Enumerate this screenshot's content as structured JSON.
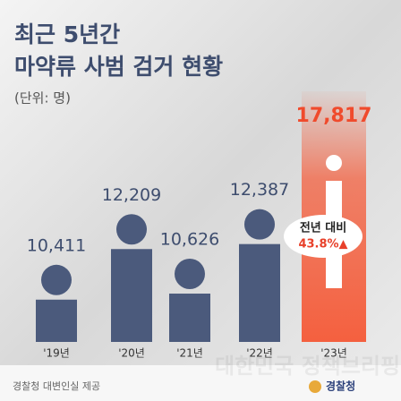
{
  "chart_data": {
    "type": "person-bar",
    "title": "최근 5년간",
    "subtitle": "마약류 사범 검거 현황",
    "unit": "(단위: 명)",
    "categories": [
      "'19년",
      "'20년",
      "'21년",
      "'22년",
      "'23년"
    ],
    "values": [
      10411,
      12209,
      10626,
      12387,
      17817
    ],
    "value_labels": [
      "10,411",
      "12,209",
      "10,626",
      "12,387",
      "17,817"
    ],
    "color": "#4b5a7c",
    "highlight_color": "#f4603f",
    "annotation": {
      "title": "전년 대비",
      "text": "43.8%▲"
    },
    "source": "경찰청 대변인실 제공",
    "logo": "경찰청",
    "watermark": "대한민국 정책브리핑"
  }
}
